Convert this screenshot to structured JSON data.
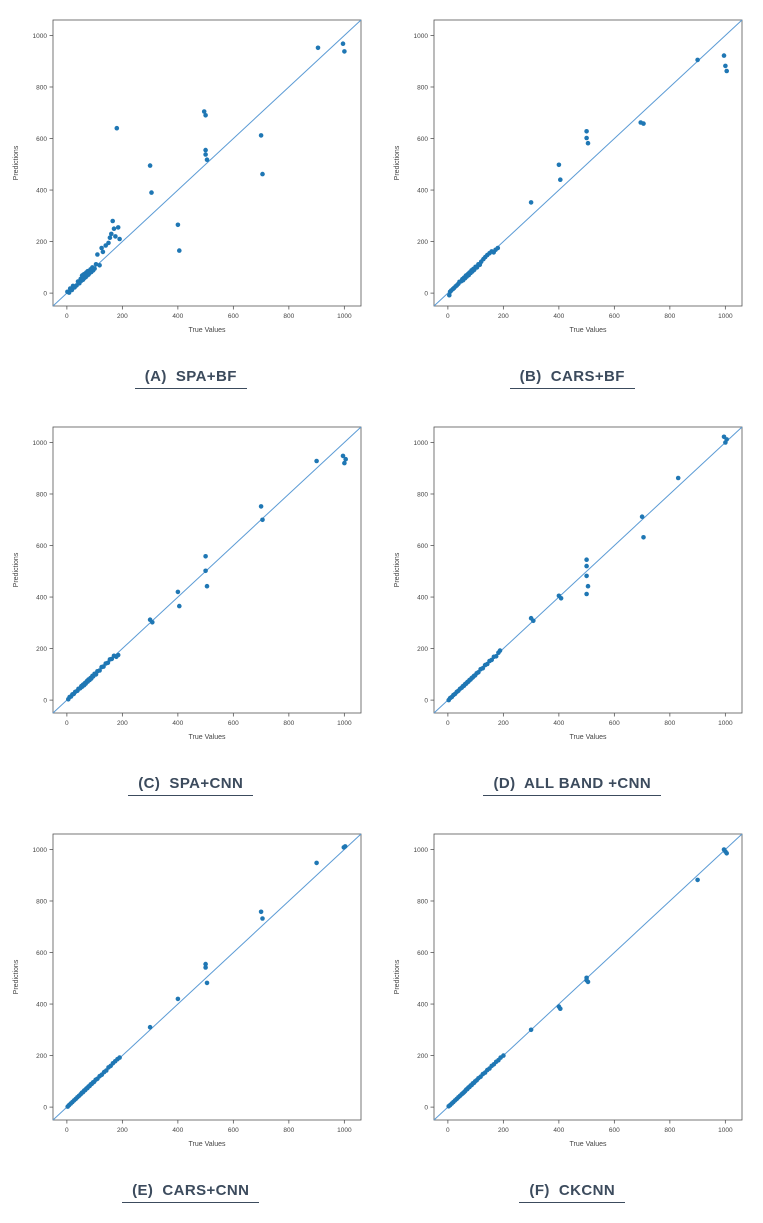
{
  "figure": {
    "background": "#ffffff",
    "caption_color": "#3c4b5d"
  },
  "chart_data": [
    {
      "id": "A",
      "type": "scatter",
      "caption": "(A)  SPA+BF",
      "xlabel": "True Values",
      "ylabel": "Predictions",
      "xlim": [
        -50,
        1060
      ],
      "ylim": [
        -50,
        1060
      ],
      "xticks": [
        0,
        200,
        400,
        600,
        800,
        1000
      ],
      "yticks": [
        0,
        200,
        400,
        600,
        800,
        1000
      ],
      "identity_line": true,
      "point_color": "#1f77b4",
      "line_color": "#5b9bd5",
      "points": [
        [
          2,
          5
        ],
        [
          8,
          2
        ],
        [
          12,
          18
        ],
        [
          18,
          12
        ],
        [
          22,
          28
        ],
        [
          28,
          22
        ],
        [
          35,
          30
        ],
        [
          40,
          45
        ],
        [
          45,
          38
        ],
        [
          50,
          55
        ],
        [
          52,
          48
        ],
        [
          55,
          68
        ],
        [
          58,
          52
        ],
        [
          60,
          72
        ],
        [
          62,
          58
        ],
        [
          65,
          75
        ],
        [
          68,
          62
        ],
        [
          70,
          80
        ],
        [
          72,
          68
        ],
        [
          75,
          85
        ],
        [
          78,
          72
        ],
        [
          82,
          78
        ],
        [
          85,
          92
        ],
        [
          88,
          82
        ],
        [
          92,
          100
        ],
        [
          95,
          88
        ],
        [
          100,
          95
        ],
        [
          105,
          112
        ],
        [
          110,
          150
        ],
        [
          118,
          108
        ],
        [
          125,
          175
        ],
        [
          130,
          160
        ],
        [
          140,
          185
        ],
        [
          150,
          195
        ],
        [
          155,
          215
        ],
        [
          160,
          230
        ],
        [
          165,
          280
        ],
        [
          170,
          250
        ],
        [
          175,
          220
        ],
        [
          180,
          640
        ],
        [
          185,
          255
        ],
        [
          190,
          210
        ],
        [
          300,
          495
        ],
        [
          305,
          390
        ],
        [
          400,
          265
        ],
        [
          405,
          165
        ],
        [
          495,
          705
        ],
        [
          500,
          690
        ],
        [
          500,
          555
        ],
        [
          500,
          538
        ],
        [
          505,
          518
        ],
        [
          700,
          612
        ],
        [
          705,
          462
        ],
        [
          905,
          952
        ],
        [
          995,
          968
        ],
        [
          1000,
          938
        ]
      ]
    },
    {
      "id": "B",
      "type": "scatter",
      "caption": "(B)  CARS+BF",
      "xlabel": "True Values",
      "ylabel": "Predictions",
      "xlim": [
        -50,
        1060
      ],
      "ylim": [
        -50,
        1060
      ],
      "xticks": [
        0,
        200,
        400,
        600,
        800,
        1000
      ],
      "yticks": [
        0,
        200,
        400,
        600,
        800,
        1000
      ],
      "identity_line": true,
      "point_color": "#1f77b4",
      "line_color": "#5b9bd5",
      "points": [
        [
          5,
          -8
        ],
        [
          8,
          5
        ],
        [
          12,
          10
        ],
        [
          18,
          16
        ],
        [
          22,
          20
        ],
        [
          28,
          26
        ],
        [
          32,
          30
        ],
        [
          38,
          36
        ],
        [
          42,
          44
        ],
        [
          48,
          46
        ],
        [
          52,
          54
        ],
        [
          55,
          50
        ],
        [
          58,
          60
        ],
        [
          62,
          58
        ],
        [
          65,
          68
        ],
        [
          68,
          64
        ],
        [
          72,
          74
        ],
        [
          75,
          70
        ],
        [
          78,
          80
        ],
        [
          82,
          78
        ],
        [
          85,
          88
        ],
        [
          88,
          84
        ],
        [
          92,
          94
        ],
        [
          95,
          90
        ],
        [
          100,
          102
        ],
        [
          105,
          100
        ],
        [
          110,
          112
        ],
        [
          115,
          110
        ],
        [
          120,
          122
        ],
        [
          128,
          132
        ],
        [
          135,
          140
        ],
        [
          142,
          148
        ],
        [
          150,
          155
        ],
        [
          158,
          162
        ],
        [
          165,
          158
        ],
        [
          172,
          168
        ],
        [
          180,
          175
        ],
        [
          300,
          352
        ],
        [
          400,
          498
        ],
        [
          405,
          440
        ],
        [
          500,
          628
        ],
        [
          500,
          602
        ],
        [
          505,
          582
        ],
        [
          695,
          662
        ],
        [
          705,
          658
        ],
        [
          900,
          905
        ],
        [
          995,
          922
        ],
        [
          1000,
          882
        ],
        [
          1005,
          862
        ]
      ]
    },
    {
      "id": "C",
      "type": "scatter",
      "caption": "(C)  SPA+CNN",
      "xlabel": "True Values",
      "ylabel": "Predictions",
      "xlim": [
        -50,
        1060
      ],
      "ylim": [
        -50,
        1060
      ],
      "xticks": [
        0,
        200,
        400,
        600,
        800,
        1000
      ],
      "yticks": [
        0,
        200,
        400,
        600,
        800,
        1000
      ],
      "identity_line": true,
      "point_color": "#1f77b4",
      "line_color": "#5b9bd5",
      "points": [
        [
          5,
          3
        ],
        [
          10,
          12
        ],
        [
          15,
          14
        ],
        [
          20,
          22
        ],
        [
          25,
          24
        ],
        [
          30,
          32
        ],
        [
          38,
          36
        ],
        [
          42,
          44
        ],
        [
          48,
          46
        ],
        [
          52,
          54
        ],
        [
          55,
          52
        ],
        [
          58,
          60
        ],
        [
          62,
          58
        ],
        [
          65,
          66
        ],
        [
          68,
          64
        ],
        [
          72,
          74
        ],
        [
          75,
          72
        ],
        [
          78,
          80
        ],
        [
          82,
          78
        ],
        [
          85,
          86
        ],
        [
          88,
          84
        ],
        [
          92,
          94
        ],
        [
          95,
          92
        ],
        [
          100,
          102
        ],
        [
          105,
          100
        ],
        [
          110,
          112
        ],
        [
          118,
          115
        ],
        [
          125,
          128
        ],
        [
          132,
          130
        ],
        [
          140,
          142
        ],
        [
          148,
          145
        ],
        [
          155,
          158
        ],
        [
          162,
          160
        ],
        [
          170,
          172
        ],
        [
          178,
          168
        ],
        [
          185,
          175
        ],
        [
          300,
          312
        ],
        [
          308,
          302
        ],
        [
          400,
          420
        ],
        [
          405,
          365
        ],
        [
          500,
          558
        ],
        [
          500,
          502
        ],
        [
          505,
          442
        ],
        [
          700,
          752
        ],
        [
          705,
          700
        ],
        [
          900,
          928
        ],
        [
          995,
          948
        ],
        [
          1000,
          920
        ],
        [
          1005,
          935
        ]
      ]
    },
    {
      "id": "D",
      "type": "scatter",
      "caption": "(D)  ALL BAND +CNN",
      "xlabel": "True Values",
      "ylabel": "Predictions",
      "xlim": [
        -50,
        1060
      ],
      "ylim": [
        -50,
        1060
      ],
      "xticks": [
        0,
        200,
        400,
        600,
        800,
        1000
      ],
      "yticks": [
        0,
        200,
        400,
        600,
        800,
        1000
      ],
      "identity_line": true,
      "point_color": "#1f77b4",
      "line_color": "#5b9bd5",
      "points": [
        [
          3,
          0
        ],
        [
          8,
          8
        ],
        [
          14,
          12
        ],
        [
          20,
          20
        ],
        [
          26,
          24
        ],
        [
          32,
          32
        ],
        [
          38,
          36
        ],
        [
          44,
          44
        ],
        [
          50,
          48
        ],
        [
          54,
          54
        ],
        [
          58,
          56
        ],
        [
          62,
          62
        ],
        [
          66,
          64
        ],
        [
          70,
          70
        ],
        [
          74,
          72
        ],
        [
          78,
          78
        ],
        [
          82,
          80
        ],
        [
          86,
          86
        ],
        [
          90,
          88
        ],
        [
          94,
          94
        ],
        [
          98,
          96
        ],
        [
          104,
          104
        ],
        [
          110,
          108
        ],
        [
          118,
          120
        ],
        [
          126,
          124
        ],
        [
          134,
          136
        ],
        [
          142,
          140
        ],
        [
          150,
          152
        ],
        [
          158,
          156
        ],
        [
          166,
          168
        ],
        [
          174,
          170
        ],
        [
          182,
          184
        ],
        [
          188,
          192
        ],
        [
          300,
          318
        ],
        [
          308,
          308
        ],
        [
          400,
          405
        ],
        [
          408,
          395
        ],
        [
          500,
          545
        ],
        [
          500,
          520
        ],
        [
          500,
          482
        ],
        [
          505,
          442
        ],
        [
          500,
          412
        ],
        [
          700,
          712
        ],
        [
          705,
          632
        ],
        [
          830,
          862
        ],
        [
          995,
          1022
        ],
        [
          1000,
          1000
        ],
        [
          1005,
          1012
        ]
      ]
    },
    {
      "id": "E",
      "type": "scatter",
      "caption": "(E)  CARS+CNN",
      "xlabel": "True Values",
      "ylabel": "Predictions",
      "xlim": [
        -50,
        1060
      ],
      "ylim": [
        -50,
        1060
      ],
      "xticks": [
        0,
        200,
        400,
        600,
        800,
        1000
      ],
      "yticks": [
        0,
        200,
        400,
        600,
        800,
        1000
      ],
      "identity_line": true,
      "point_color": "#1f77b4",
      "line_color": "#5b9bd5",
      "points": [
        [
          3,
          2
        ],
        [
          8,
          8
        ],
        [
          14,
          14
        ],
        [
          20,
          20
        ],
        [
          26,
          26
        ],
        [
          32,
          32
        ],
        [
          38,
          38
        ],
        [
          44,
          44
        ],
        [
          50,
          50
        ],
        [
          54,
          56
        ],
        [
          58,
          58
        ],
        [
          62,
          64
        ],
        [
          66,
          66
        ],
        [
          70,
          72
        ],
        [
          74,
          74
        ],
        [
          78,
          80
        ],
        [
          82,
          82
        ],
        [
          86,
          88
        ],
        [
          90,
          90
        ],
        [
          94,
          96
        ],
        [
          98,
          98
        ],
        [
          104,
          106
        ],
        [
          110,
          110
        ],
        [
          118,
          120
        ],
        [
          126,
          126
        ],
        [
          134,
          136
        ],
        [
          142,
          142
        ],
        [
          150,
          154
        ],
        [
          158,
          160
        ],
        [
          166,
          170
        ],
        [
          174,
          178
        ],
        [
          182,
          186
        ],
        [
          190,
          192
        ],
        [
          300,
          310
        ],
        [
          400,
          420
        ],
        [
          500,
          555
        ],
        [
          500,
          542
        ],
        [
          505,
          482
        ],
        [
          700,
          758
        ],
        [
          705,
          732
        ],
        [
          900,
          948
        ],
        [
          998,
          1008
        ],
        [
          1003,
          1012
        ]
      ]
    },
    {
      "id": "F",
      "type": "scatter",
      "caption": "(F)  CKCNN",
      "xlabel": "True Values",
      "ylabel": "Predictions",
      "xlim": [
        -50,
        1060
      ],
      "ylim": [
        -50,
        1060
      ],
      "xticks": [
        0,
        200,
        400,
        600,
        800,
        1000
      ],
      "yticks": [
        0,
        200,
        400,
        600,
        800,
        1000
      ],
      "identity_line": true,
      "point_color": "#1f77b4",
      "line_color": "#5b9bd5",
      "points": [
        [
          3,
          3
        ],
        [
          8,
          8
        ],
        [
          14,
          14
        ],
        [
          20,
          20
        ],
        [
          26,
          26
        ],
        [
          32,
          32
        ],
        [
          38,
          38
        ],
        [
          44,
          44
        ],
        [
          50,
          50
        ],
        [
          54,
          54
        ],
        [
          58,
          58
        ],
        [
          62,
          62
        ],
        [
          66,
          68
        ],
        [
          70,
          70
        ],
        [
          74,
          76
        ],
        [
          78,
          78
        ],
        [
          82,
          84
        ],
        [
          86,
          86
        ],
        [
          90,
          92
        ],
        [
          94,
          94
        ],
        [
          98,
          100
        ],
        [
          104,
          104
        ],
        [
          110,
          112
        ],
        [
          118,
          118
        ],
        [
          126,
          128
        ],
        [
          134,
          134
        ],
        [
          142,
          144
        ],
        [
          150,
          150
        ],
        [
          158,
          160
        ],
        [
          166,
          166
        ],
        [
          174,
          176
        ],
        [
          182,
          182
        ],
        [
          190,
          192
        ],
        [
          200,
          200
        ],
        [
          300,
          300
        ],
        [
          400,
          390
        ],
        [
          405,
          382
        ],
        [
          500,
          502
        ],
        [
          500,
          492
        ],
        [
          505,
          486
        ],
        [
          900,
          882
        ],
        [
          995,
          1000
        ],
        [
          1000,
          992
        ],
        [
          1005,
          985
        ]
      ]
    }
  ]
}
